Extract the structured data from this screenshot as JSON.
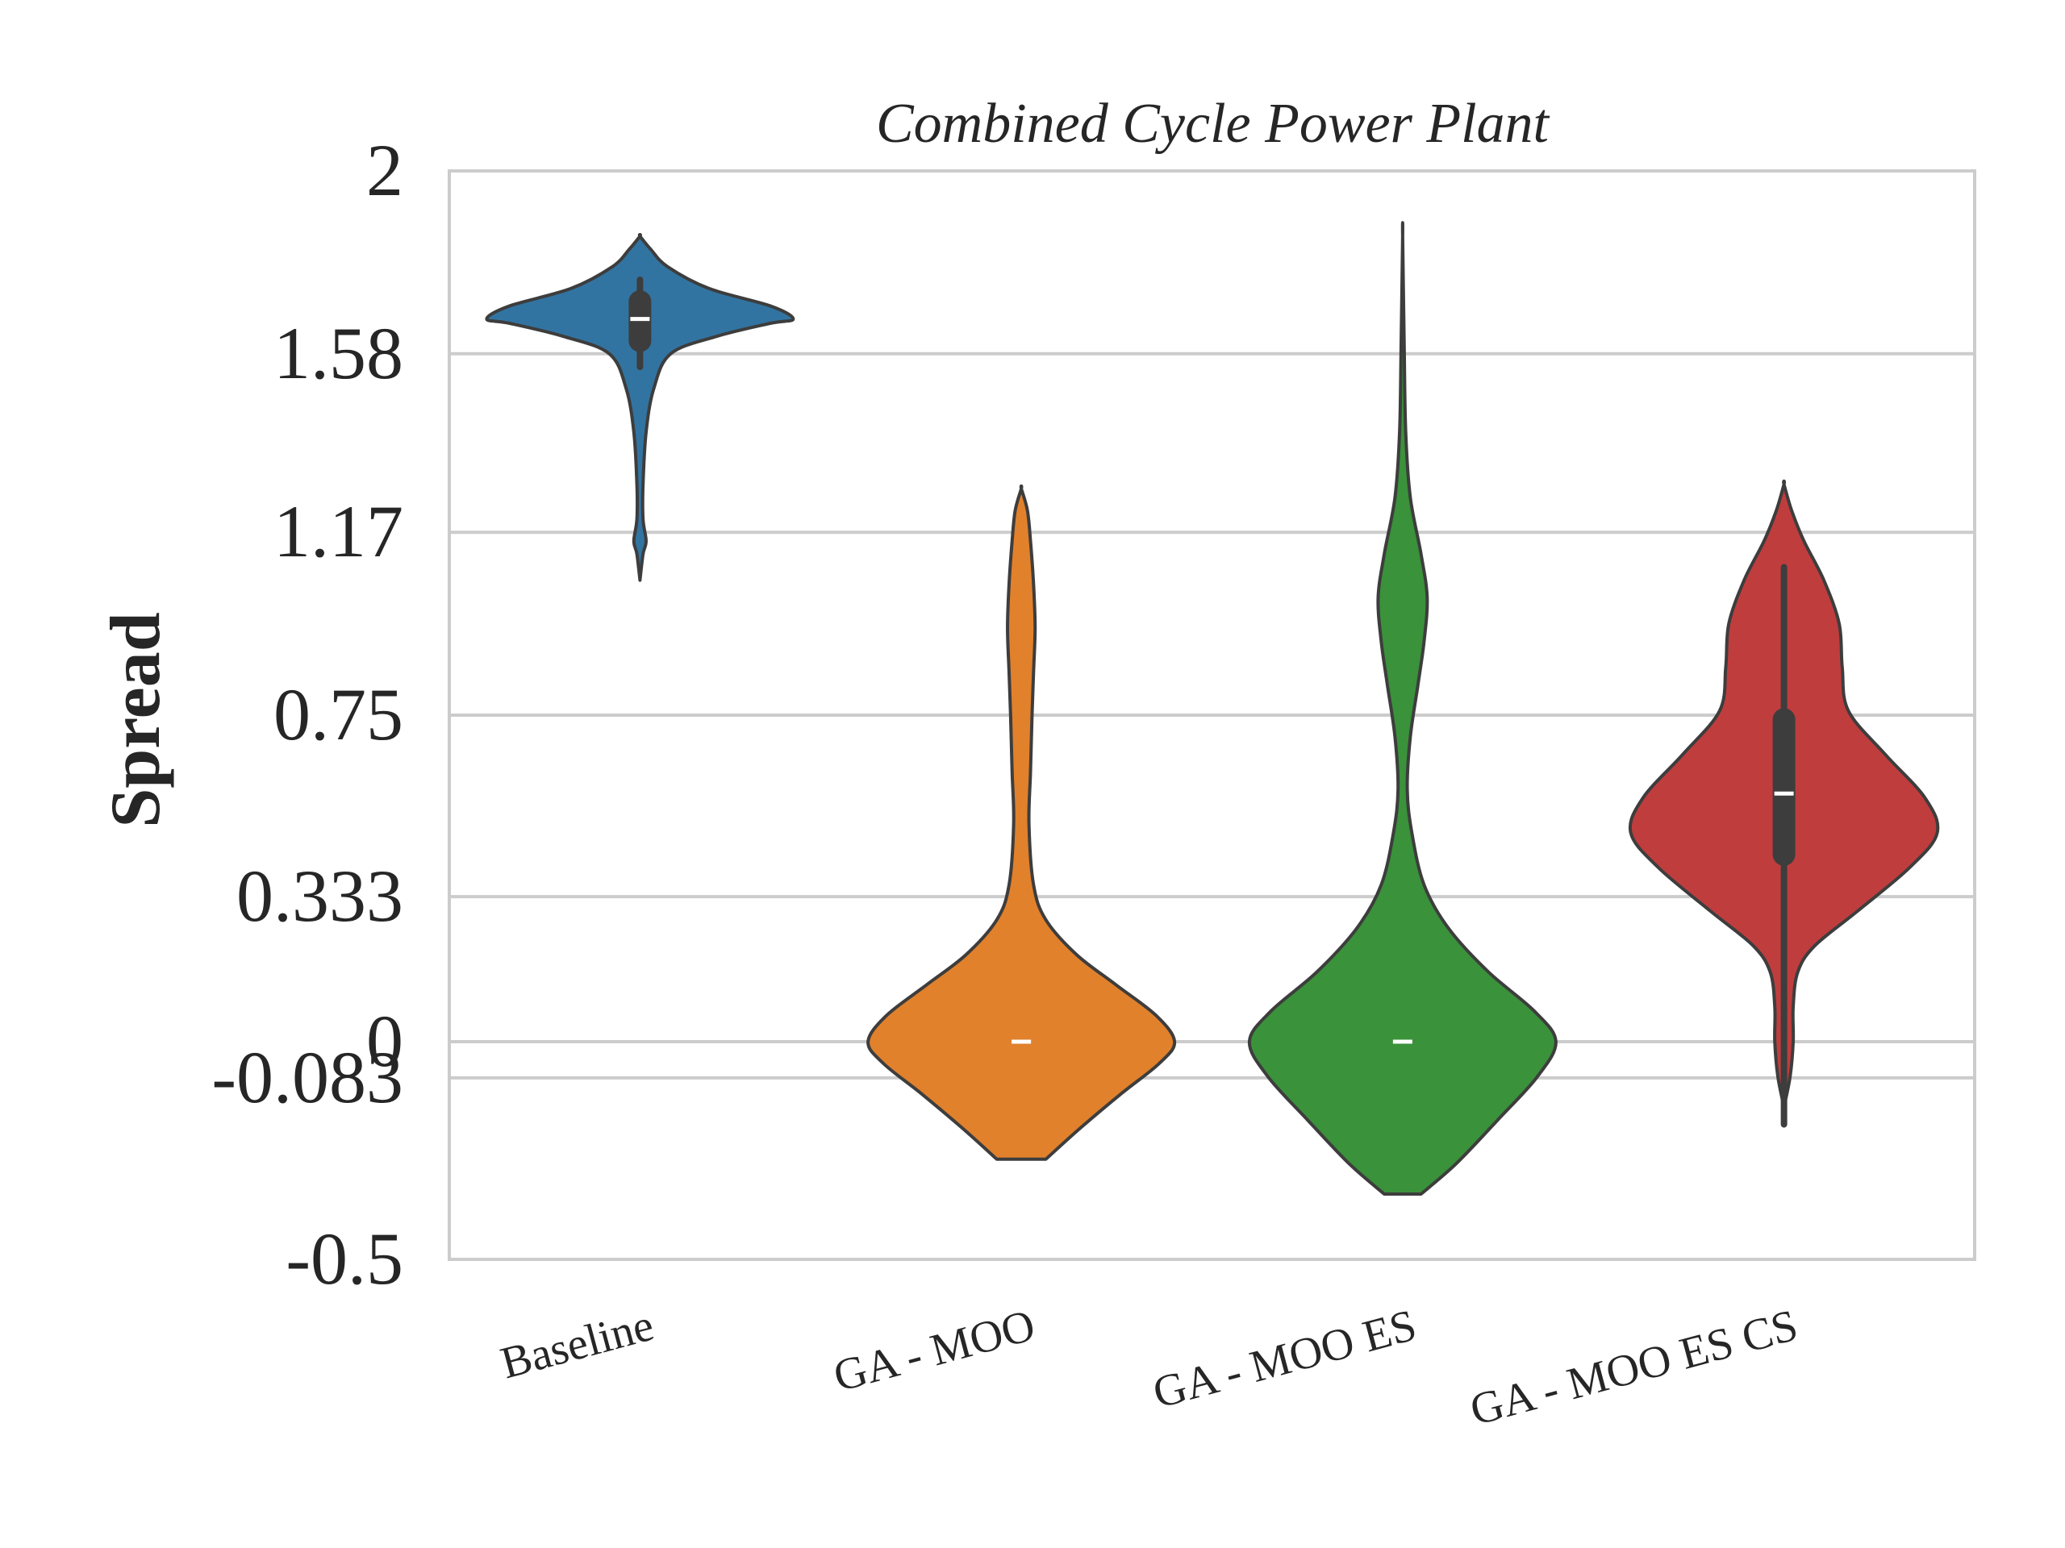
{
  "chart_data": {
    "type": "violin",
    "title": "Combined Cycle Power Plant",
    "xlabel": "",
    "ylabel": "Spread",
    "ylim": [
      -0.5,
      2
    ],
    "yticks": [
      {
        "value": 2,
        "label": "2"
      },
      {
        "value": 1.58,
        "label": "1.58"
      },
      {
        "value": 1.17,
        "label": "1.17"
      },
      {
        "value": 0.75,
        "label": "0.75"
      },
      {
        "value": 0.333,
        "label": "0.333"
      },
      {
        "value": 0,
        "label": "0"
      },
      {
        "value": -0.083,
        "label": "-0.083"
      },
      {
        "value": -0.5,
        "label": "-0.5"
      }
    ],
    "grid": "horizontal",
    "categories": [
      "Baseline",
      "GA - MOO",
      "GA - MOO ES",
      "GA - MOO ES CS"
    ],
    "series": [
      {
        "category": "Baseline",
        "color": "#3274a1",
        "min": 1.06,
        "max": 1.85,
        "median": 1.66,
        "q1": 1.61,
        "q3": 1.7,
        "whisker": [
          1.55,
          1.75
        ],
        "profile": [
          [
            1.06,
            0.0
          ],
          [
            1.12,
            0.02
          ],
          [
            1.15,
            0.04
          ],
          [
            1.2,
            0.02
          ],
          [
            1.28,
            0.02
          ],
          [
            1.4,
            0.04
          ],
          [
            1.5,
            0.09
          ],
          [
            1.58,
            0.2
          ],
          [
            1.62,
            0.5
          ],
          [
            1.65,
            0.85
          ],
          [
            1.66,
            1.0
          ],
          [
            1.69,
            0.85
          ],
          [
            1.73,
            0.45
          ],
          [
            1.78,
            0.18
          ],
          [
            1.82,
            0.07
          ],
          [
            1.85,
            0.0
          ]
        ]
      },
      {
        "category": "GA - MOO",
        "color": "#e1812c",
        "min": -0.27,
        "max": 1.27,
        "median": 0.0,
        "q1": 0.0,
        "q3": 0.0,
        "whisker": [
          0.0,
          0.0
        ],
        "profile": [
          [
            -0.27,
            0.16
          ],
          [
            -0.2,
            0.38
          ],
          [
            -0.12,
            0.65
          ],
          [
            -0.05,
            0.9
          ],
          [
            0.0,
            1.0
          ],
          [
            0.06,
            0.88
          ],
          [
            0.13,
            0.62
          ],
          [
            0.2,
            0.36
          ],
          [
            0.28,
            0.16
          ],
          [
            0.36,
            0.08
          ],
          [
            0.5,
            0.05
          ],
          [
            0.62,
            0.06
          ],
          [
            0.75,
            0.07
          ],
          [
            0.85,
            0.08
          ],
          [
            0.95,
            0.09
          ],
          [
            1.05,
            0.08
          ],
          [
            1.15,
            0.06
          ],
          [
            1.22,
            0.04
          ],
          [
            1.27,
            0.0
          ]
        ]
      },
      {
        "category": "GA - MOO ES",
        "color": "#3a923a",
        "min": -0.35,
        "max": 1.85,
        "median": 0.0,
        "q1": 0.0,
        "q3": 0.0,
        "whisker": [
          0.0,
          0.0
        ],
        "profile": [
          [
            -0.35,
            0.12
          ],
          [
            -0.28,
            0.35
          ],
          [
            -0.18,
            0.62
          ],
          [
            -0.08,
            0.88
          ],
          [
            0.0,
            1.0
          ],
          [
            0.07,
            0.86
          ],
          [
            0.16,
            0.56
          ],
          [
            0.26,
            0.3
          ],
          [
            0.36,
            0.14
          ],
          [
            0.48,
            0.06
          ],
          [
            0.58,
            0.03
          ],
          [
            0.7,
            0.05
          ],
          [
            0.82,
            0.1
          ],
          [
            0.92,
            0.14
          ],
          [
            1.02,
            0.16
          ],
          [
            1.12,
            0.12
          ],
          [
            1.25,
            0.05
          ],
          [
            1.4,
            0.02
          ],
          [
            1.6,
            0.01
          ],
          [
            1.85,
            0.0
          ]
        ]
      },
      {
        "category": "GA - MOO ES CS",
        "color": "#c03d3e",
        "min": -0.15,
        "max": 1.28,
        "median": 0.57,
        "q1": 0.43,
        "q3": 0.74,
        "whisker": [
          -0.19,
          1.09
        ],
        "profile": [
          [
            -0.15,
            0.0
          ],
          [
            -0.08,
            0.04
          ],
          [
            0.0,
            0.06
          ],
          [
            0.08,
            0.06
          ],
          [
            0.16,
            0.09
          ],
          [
            0.22,
            0.2
          ],
          [
            0.3,
            0.48
          ],
          [
            0.4,
            0.82
          ],
          [
            0.48,
            1.0
          ],
          [
            0.56,
            0.92
          ],
          [
            0.66,
            0.66
          ],
          [
            0.76,
            0.42
          ],
          [
            0.86,
            0.38
          ],
          [
            0.96,
            0.36
          ],
          [
            1.06,
            0.26
          ],
          [
            1.15,
            0.13
          ],
          [
            1.22,
            0.05
          ],
          [
            1.28,
            0.0
          ]
        ]
      }
    ]
  }
}
